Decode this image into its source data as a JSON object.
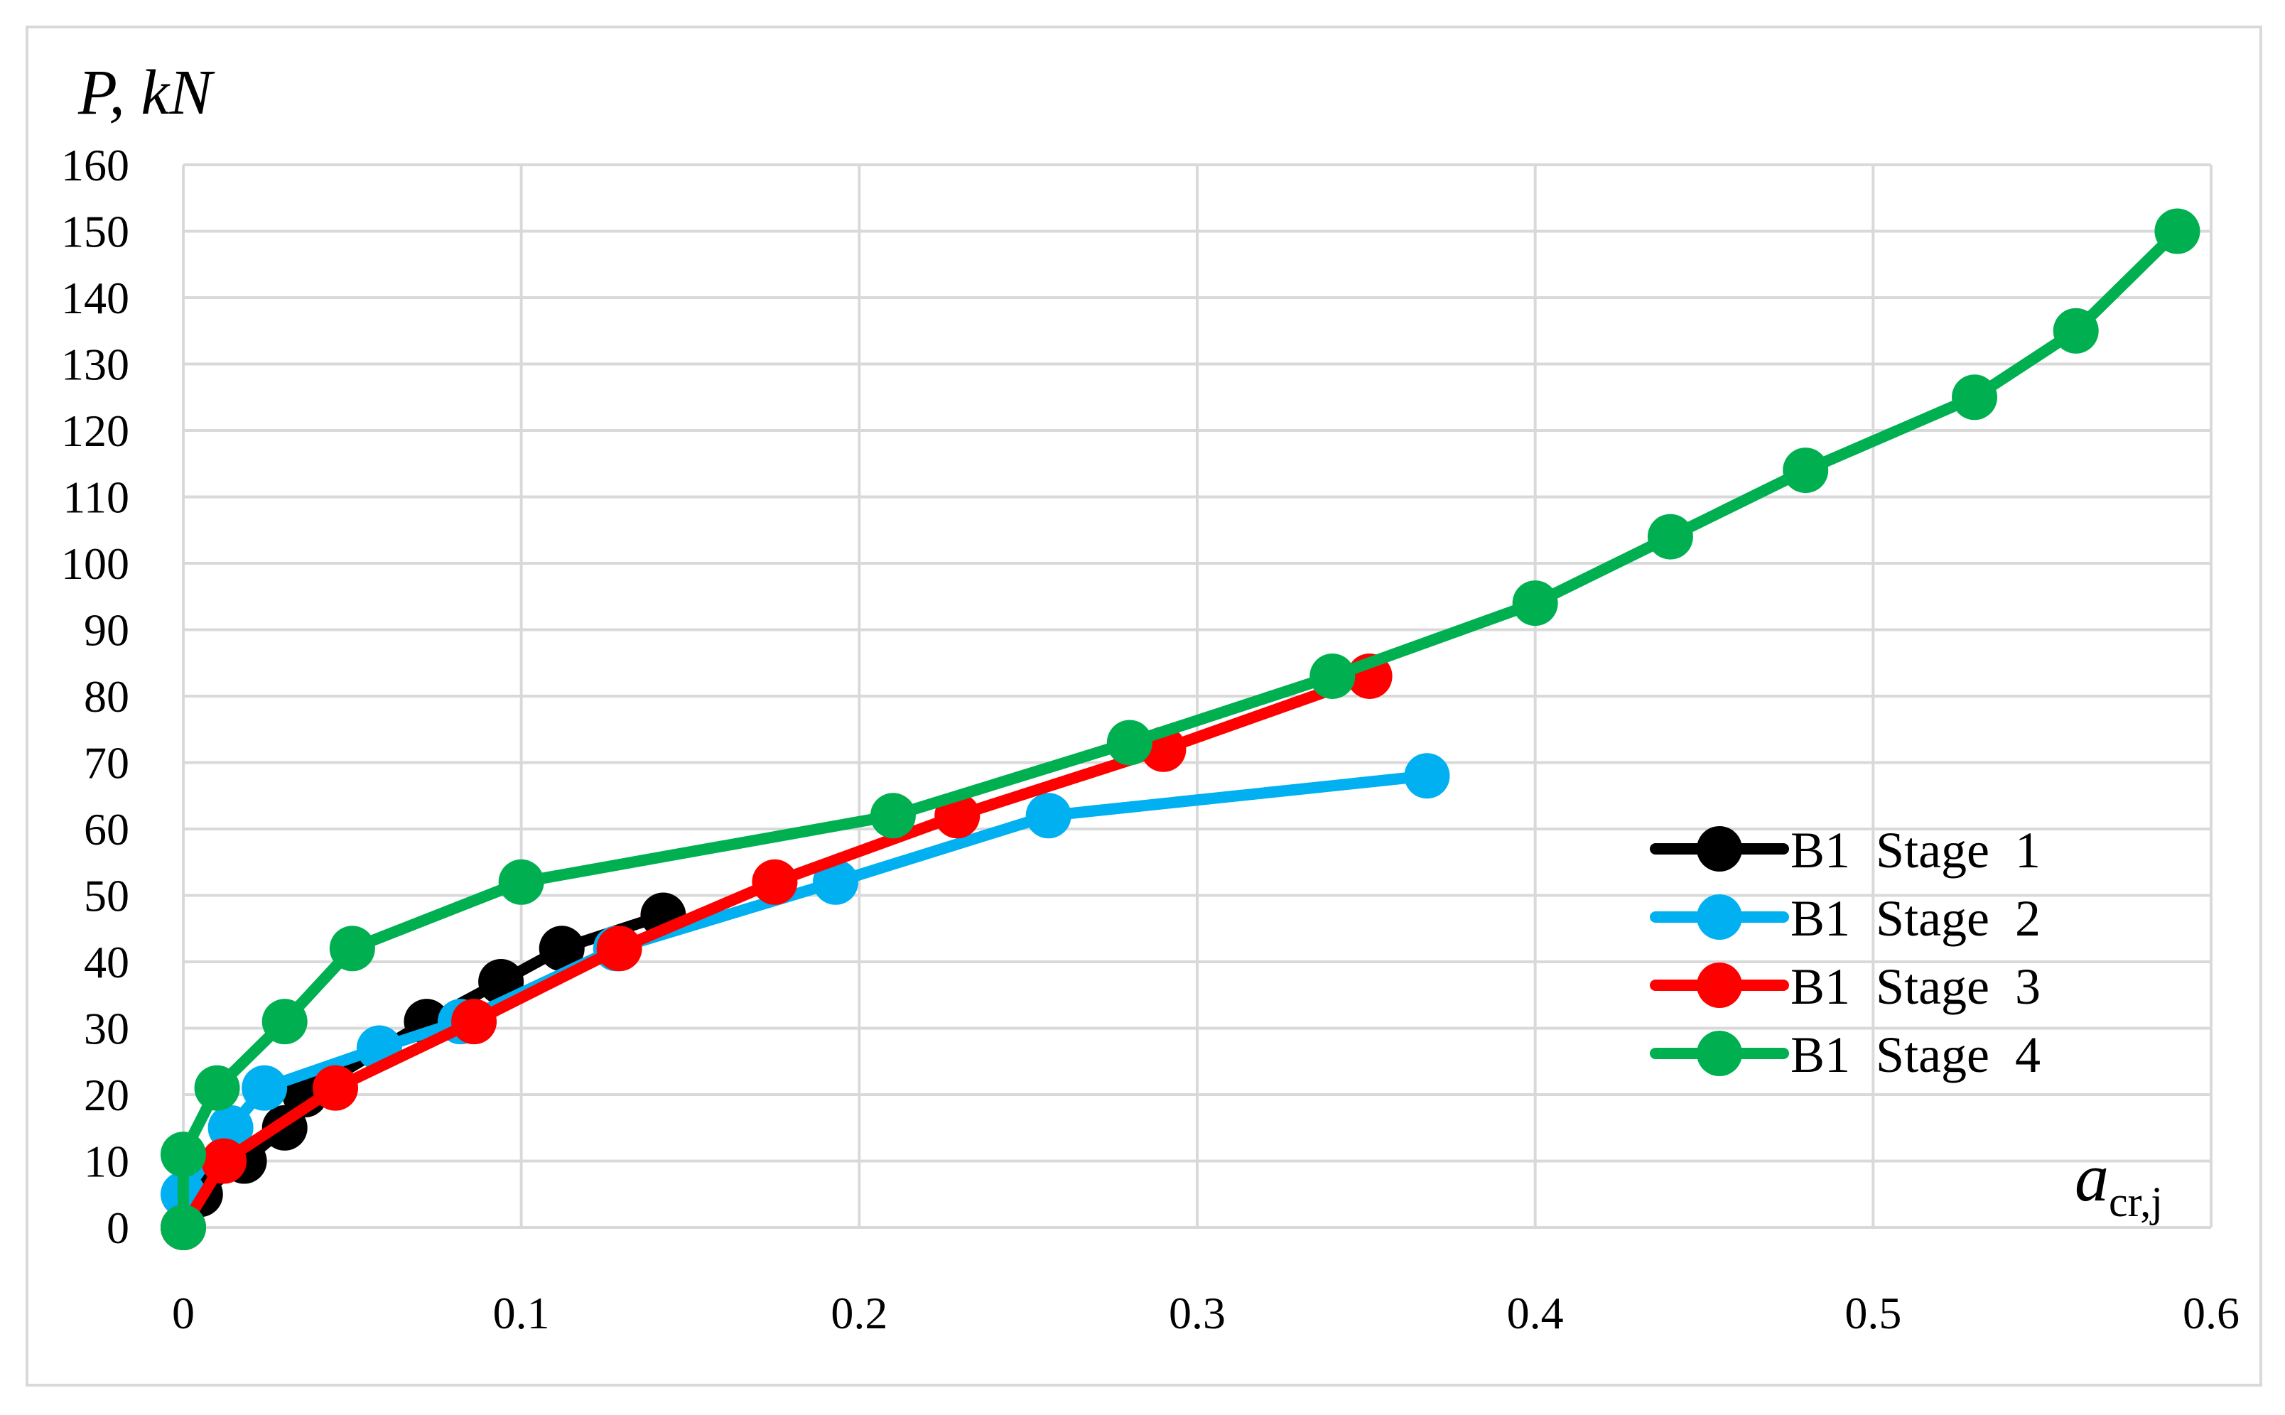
{
  "chart_data": {
    "type": "line",
    "title": "",
    "ylabel": "P, kN",
    "xlabel_main": "a",
    "xlabel_sub": "cr,j",
    "xlim": [
      0,
      0.6
    ],
    "ylim": [
      0,
      160
    ],
    "x_ticks": [
      "0",
      "0.1",
      "0.2",
      "0.3",
      "0.4",
      "0.5",
      "0.6"
    ],
    "y_ticks": [
      "0",
      "10",
      "20",
      "30",
      "40",
      "50",
      "60",
      "70",
      "80",
      "90",
      "100",
      "110",
      "120",
      "130",
      "140",
      "150",
      "160"
    ],
    "grid": true,
    "legend_position": "right",
    "series": [
      {
        "name": "B1  Stage  1",
        "color": "#000000",
        "points": [
          [
            0,
            0
          ],
          [
            0.005,
            5
          ],
          [
            0.018,
            10
          ],
          [
            0.03,
            15
          ],
          [
            0.036,
            20
          ],
          [
            0.072,
            31
          ],
          [
            0.094,
            37
          ],
          [
            0.112,
            42
          ],
          [
            0.142,
            47
          ]
        ]
      },
      {
        "name": "B1  Stage  2",
        "color": "#00b0f0",
        "points": [
          [
            0,
            0
          ],
          [
            0,
            5
          ],
          [
            0.014,
            15
          ],
          [
            0.024,
            21
          ],
          [
            0.058,
            27
          ],
          [
            0.082,
            31
          ],
          [
            0.128,
            42
          ],
          [
            0.193,
            52
          ],
          [
            0.256,
            62
          ],
          [
            0.368,
            68
          ]
        ]
      },
      {
        "name": "B1  Stage  3",
        "color": "#ff0000",
        "points": [
          [
            0,
            0
          ],
          [
            0.012,
            10
          ],
          [
            0.045,
            21
          ],
          [
            0.086,
            31
          ],
          [
            0.129,
            42
          ],
          [
            0.175,
            52
          ],
          [
            0.229,
            62
          ],
          [
            0.29,
            72
          ],
          [
            0.351,
            83
          ]
        ]
      },
      {
        "name": "B1  Stage  4",
        "color": "#00b050",
        "points": [
          [
            0,
            0
          ],
          [
            0,
            11
          ],
          [
            0.01,
            21
          ],
          [
            0.03,
            31
          ],
          [
            0.05,
            42
          ],
          [
            0.1,
            52
          ],
          [
            0.21,
            62
          ],
          [
            0.28,
            73
          ],
          [
            0.34,
            83
          ],
          [
            0.4,
            94
          ],
          [
            0.44,
            104
          ],
          [
            0.48,
            114
          ],
          [
            0.53,
            125
          ],
          [
            0.56,
            135
          ],
          [
            0.59,
            150
          ]
        ]
      }
    ]
  }
}
